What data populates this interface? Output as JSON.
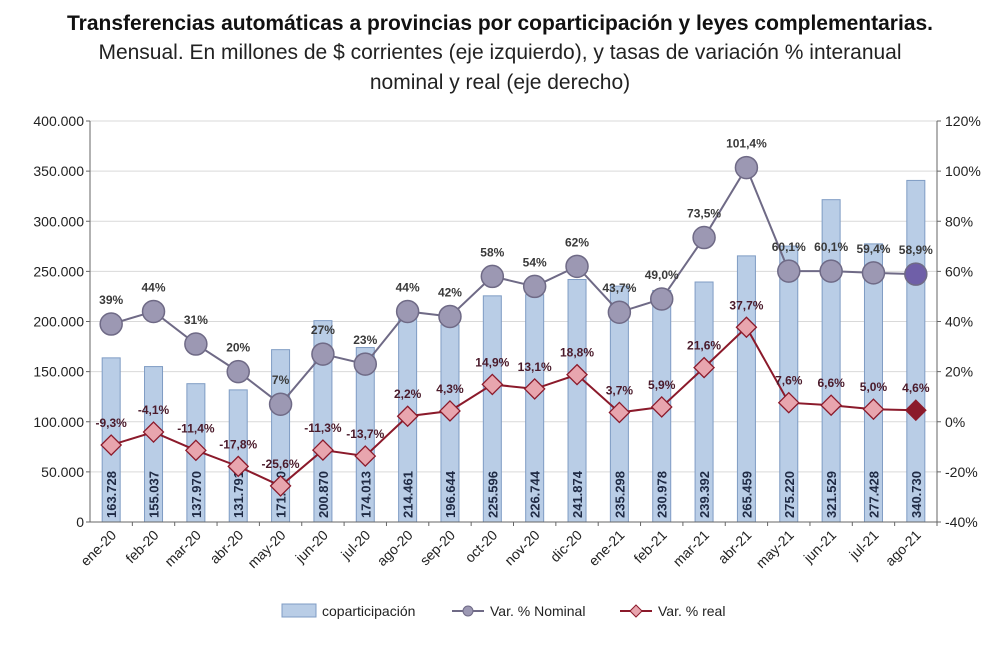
{
  "title": "Transferencias automáticas a provincias por coparticipación y leyes complementarias.",
  "subtitle_line1": "Mensual. En millones de $ corrientes (eje izquierdo), y tasas de variación % interanual",
  "subtitle_line2": "nominal y real (eje derecho)",
  "colors": {
    "bar_fill": "#b9cde6",
    "bar_stroke": "#7f9cc4",
    "nominal_line": "#6f6a86",
    "nominal_marker": "#9c98b3",
    "nominal_last_marker": "#6f5fa8",
    "real_line": "#8b1a2b",
    "real_marker": "#e8a5ae",
    "real_marker_stroke": "#8b1a2b"
  },
  "chart_data": {
    "type": "bar",
    "categories": [
      "ene-20",
      "feb-20",
      "mar-20",
      "abr-20",
      "may-20",
      "jun-20",
      "jul-20",
      "ago-20",
      "sep-20",
      "oct-20",
      "nov-20",
      "dic-20",
      "ene-21",
      "feb-21",
      "mar-21",
      "abr-21",
      "may-21",
      "jun-21",
      "jul-21",
      "ago-21"
    ],
    "left_axis": {
      "ylim": [
        0,
        400000
      ],
      "ticks": [
        "0",
        "50.000",
        "100.000",
        "150.000",
        "200.000",
        "250.000",
        "300.000",
        "350.000",
        "400.000"
      ]
    },
    "right_axis": {
      "ylim": [
        -40,
        120
      ],
      "ticks": [
        "-40%",
        "-20%",
        "0%",
        "20%",
        "40%",
        "60%",
        "80%",
        "100%",
        "120%"
      ]
    },
    "grid": true,
    "legend_position": "bottom",
    "series": [
      {
        "name": "coparticipación",
        "type": "bar",
        "axis": "left",
        "values": [
          163728,
          155037,
          137970,
          131791,
          171910,
          200870,
          174013,
          214461,
          196644,
          225596,
          226744,
          241874,
          235298,
          230978,
          239392,
          265459,
          275220,
          321529,
          277428,
          340730
        ],
        "labels": [
          "163.728",
          "155.037",
          "137.970",
          "131.791",
          "171.910",
          "200.870",
          "174.013",
          "214.461",
          "196.644",
          "225.596",
          "226.744",
          "241.874",
          "235.298",
          "230.978",
          "239.392",
          "265.459",
          "275.220",
          "321.529",
          "277.428",
          "340.730"
        ]
      },
      {
        "name": "Var. % Nominal",
        "type": "line",
        "axis": "right",
        "values": [
          39,
          44,
          31,
          20,
          7,
          27,
          23,
          44,
          42,
          58,
          54,
          62,
          43.7,
          49.0,
          73.5,
          101.4,
          60.1,
          60.1,
          59.4,
          58.9
        ],
        "labels": [
          "39%",
          "44%",
          "31%",
          "20%",
          "7%",
          "27%",
          "23%",
          "44%",
          "42%",
          "58%",
          "54%",
          "62%",
          "43,7%",
          "49,0%",
          "73,5%",
          "101,4%",
          "60,1%",
          "60,1%",
          "59,4%",
          "58,9%"
        ]
      },
      {
        "name": "Var. % real",
        "type": "line",
        "axis": "right",
        "values": [
          -9.3,
          -4.1,
          -11.4,
          -17.8,
          -25.6,
          -11.3,
          -13.7,
          2.2,
          4.3,
          14.9,
          13.1,
          18.8,
          3.7,
          5.9,
          21.6,
          37.7,
          7.6,
          6.6,
          5.0,
          4.6
        ],
        "labels": [
          "-9,3%",
          "-4,1%",
          "-11,4%",
          "-17,8%",
          "-25,6%",
          "-11,3%",
          "-13,7%",
          "2,2%",
          "4,3%",
          "14,9%",
          "13,1%",
          "18,8%",
          "3,7%",
          "5,9%",
          "21,6%",
          "37,7%",
          "7,6%",
          "6,6%",
          "5,0%",
          "4,6%"
        ]
      }
    ]
  }
}
